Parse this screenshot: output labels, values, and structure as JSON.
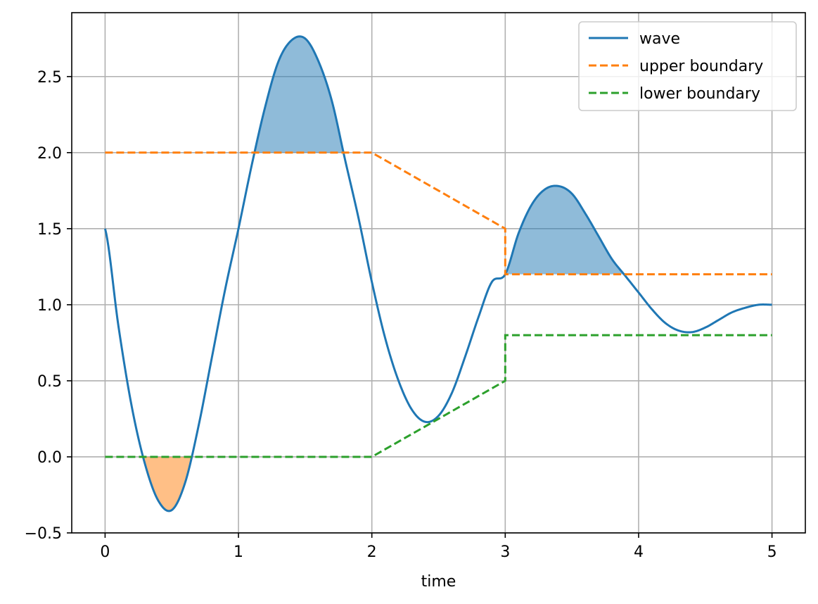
{
  "chart_data": {
    "type": "line",
    "title": "",
    "xlabel": "time",
    "ylabel": "",
    "xlim": [
      -0.25,
      5.25
    ],
    "ylim": [
      -0.5,
      2.92
    ],
    "xticks": [
      0,
      1,
      2,
      3,
      4,
      5
    ],
    "xtick_labels": [
      "0",
      "1",
      "2",
      "3",
      "4",
      "5"
    ],
    "yticks": [
      -0.5,
      0.0,
      0.5,
      1.0,
      1.5,
      2.0,
      2.5
    ],
    "ytick_labels": [
      "−0.5",
      "0.0",
      "0.5",
      "1.0",
      "1.5",
      "2.0",
      "2.5"
    ],
    "grid": true,
    "legend_position": "upper right",
    "legend": [
      "wave",
      "upper boundary",
      "lower boundary"
    ],
    "series": [
      {
        "name": "wave",
        "color": "#1f77b4",
        "style": "solid",
        "x": [
          0,
          0.1,
          0.2,
          0.3,
          0.4,
          0.5,
          0.6,
          0.7,
          0.8,
          0.9,
          1.0,
          1.1,
          1.2,
          1.3,
          1.4,
          1.5,
          1.6,
          1.7,
          1.8,
          1.9,
          2.0,
          2.1,
          2.2,
          2.3,
          2.4,
          2.5,
          2.6,
          2.7,
          2.8,
          2.9,
          3.0,
          3.1,
          3.2,
          3.3,
          3.4,
          3.5,
          3.6,
          3.7,
          3.8,
          3.9,
          4.0,
          4.1,
          4.2,
          4.3,
          4.4,
          4.5,
          4.6,
          4.7,
          4.8,
          4.9,
          5.0
        ],
        "y": [
          1.5,
          0.86,
          0.33,
          -0.05,
          -0.29,
          -0.35,
          -0.17,
          0.2,
          0.65,
          1.1,
          1.5,
          1.92,
          2.3,
          2.6,
          2.74,
          2.75,
          2.6,
          2.34,
          1.95,
          1.57,
          1.15,
          0.78,
          0.5,
          0.31,
          0.23,
          0.27,
          0.42,
          0.66,
          0.92,
          1.15,
          1.2,
          1.47,
          1.66,
          1.76,
          1.78,
          1.73,
          1.6,
          1.45,
          1.3,
          1.19,
          1.08,
          0.97,
          0.88,
          0.83,
          0.82,
          0.85,
          0.9,
          0.95,
          0.98,
          1.0,
          1.0
        ]
      },
      {
        "name": "upper boundary",
        "color": "#ff7f0e",
        "style": "dashed",
        "x": [
          0,
          2,
          3,
          3,
          5
        ],
        "y": [
          2.0,
          2.0,
          1.5,
          1.2,
          1.2
        ]
      },
      {
        "name": "lower boundary",
        "color": "#2ca02c",
        "style": "dashed",
        "x": [
          0,
          2,
          3,
          3,
          5
        ],
        "y": [
          0.0,
          0.0,
          0.5,
          0.8,
          0.8
        ]
      }
    ],
    "fills": [
      {
        "between": [
          "wave",
          "upper boundary"
        ],
        "where": "wave > upper boundary",
        "color": "#1f77b4",
        "alpha": 0.5
      },
      {
        "between": [
          "wave",
          "lower boundary"
        ],
        "where": "wave < lower boundary",
        "color": "#ff7f0e",
        "alpha": 0.5
      }
    ],
    "colors": {
      "axes": "#000000",
      "grid": "#b0b0b0",
      "background": "#ffffff"
    }
  }
}
